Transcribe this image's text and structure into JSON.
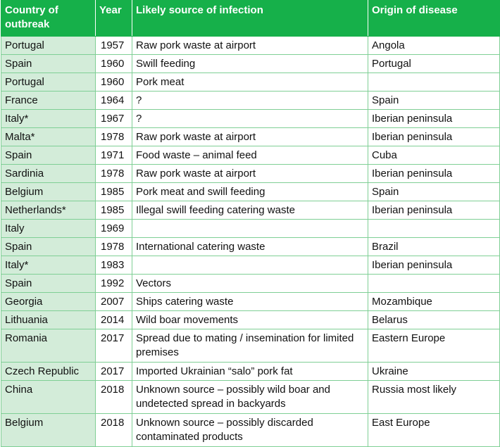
{
  "headers": {
    "country": "Country of outbreak",
    "year": "Year",
    "source": "Likely source of infection",
    "origin": "Origin of disease"
  },
  "rows": [
    {
      "country": "Portugal",
      "year": "1957",
      "source": "Raw pork waste at airport",
      "origin": "Angola"
    },
    {
      "country": "Spain",
      "year": "1960",
      "source": "Swill feeding",
      "origin": "Portugal"
    },
    {
      "country": "Portugal",
      "year": "1960",
      "source": "Pork meat",
      "origin": ""
    },
    {
      "country": "France",
      "year": "1964",
      "source": "?",
      "origin": "Spain"
    },
    {
      "country": "Italy*",
      "year": "1967",
      "source": "?",
      "origin": "Iberian peninsula"
    },
    {
      "country": "Malta*",
      "year": "1978",
      "source": "Raw pork waste at airport",
      "origin": "Iberian peninsula"
    },
    {
      "country": "Spain",
      "year": "1971",
      "source": "Food waste – animal feed",
      "origin": "Cuba"
    },
    {
      "country": "Sardinia",
      "year": "1978",
      "source": "Raw pork waste at airport",
      "origin": "Iberian peninsula"
    },
    {
      "country": "Belgium",
      "year": "1985",
      "source": "Pork meat and swill feeding",
      "origin": "Spain"
    },
    {
      "country": "Netherlands*",
      "year": "1985",
      "source": "Illegal swill feeding catering waste",
      "origin": "Iberian peninsula"
    },
    {
      "country": "Italy",
      "year": "1969",
      "source": "",
      "origin": ""
    },
    {
      "country": "Spain",
      "year": "1978",
      "source": "International catering waste",
      "origin": "Brazil"
    },
    {
      "country": "Italy*",
      "year": "1983",
      "source": "",
      "origin": "Iberian peninsula"
    },
    {
      "country": "Spain",
      "year": "1992",
      "source": "Vectors",
      "origin": ""
    },
    {
      "country": "Georgia",
      "year": "2007",
      "source": "Ships catering waste",
      "origin": "Mozambique"
    },
    {
      "country": "Lithuania",
      "year": "2014",
      "source": "Wild boar movements",
      "origin": "Belarus"
    },
    {
      "country": "Romania",
      "year": "2017",
      "source": "Spread due to mating / insemination for limited premises",
      "origin": "Eastern Europe"
    },
    {
      "country": "Czech Republic",
      "year": "2017",
      "source": "Imported Ukrainian “salo” pork fat",
      "origin": "Ukraine"
    },
    {
      "country": "China",
      "year": "2018",
      "source": "Unknown source – possibly wild boar and undetected spread in backyards",
      "origin": "Russia most likely"
    },
    {
      "country": "Belgium",
      "year": "2018",
      "source": "Unknown source – possibly discarded contaminated products",
      "origin": "East Europe"
    }
  ]
}
